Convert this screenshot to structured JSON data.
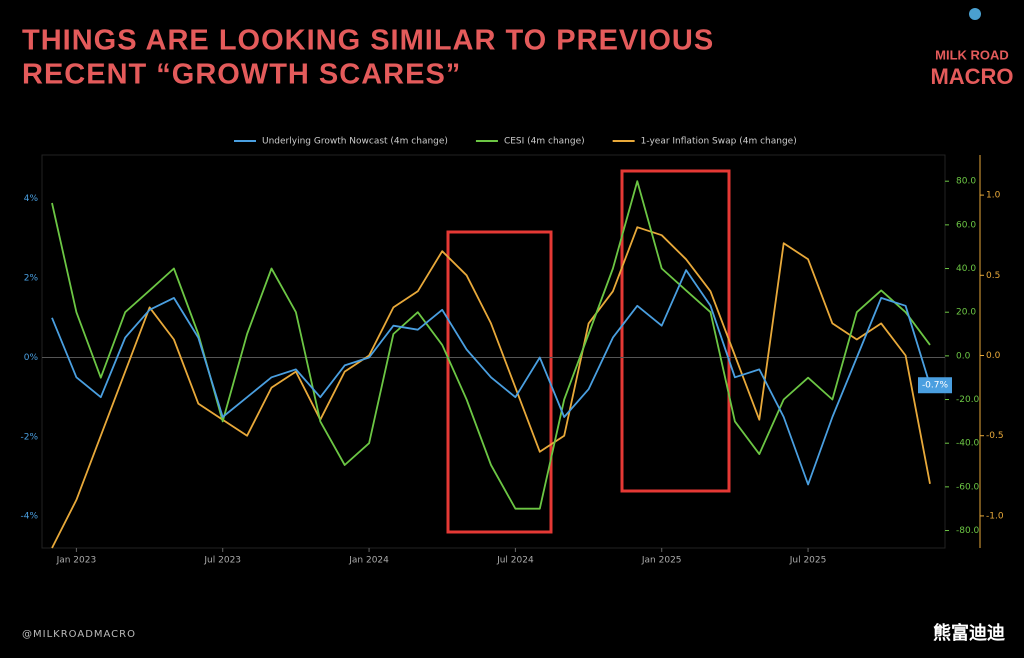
{
  "chart_data": {
    "type": "line",
    "title": [
      "THINGS ARE LOOKING SIMILAR TO PREVIOUS",
      "RECENT “GROWTH SCARES”"
    ],
    "brand": [
      "MILK ROAD",
      "MACRO"
    ],
    "footer": "@MILKROADMACRO",
    "watermark": "熊富迪迪",
    "x": [
      "2022-12",
      "2023-01",
      "2023-02",
      "2023-03",
      "2023-04",
      "2023-05",
      "2023-06",
      "2023-07",
      "2023-08",
      "2023-09",
      "2023-10",
      "2023-11",
      "2023-12",
      "2024-01",
      "2024-02",
      "2024-03",
      "2024-04",
      "2024-05",
      "2024-06",
      "2024-07",
      "2024-08",
      "2024-09",
      "2024-10",
      "2024-11",
      "2024-12",
      "2025-01",
      "2025-02",
      "2025-03",
      "2025-04",
      "2025-05",
      "2025-06",
      "2025-07",
      "2025-08",
      "2025-09",
      "2025-10",
      "2025-11",
      "2025-12"
    ],
    "xlim": [
      "2022-12",
      "2025-12"
    ],
    "xticks": [
      {
        "value": "2023-01",
        "label": "Jan 2023"
      },
      {
        "value": "2023-07",
        "label": "Jul 2023"
      },
      {
        "value": "2024-01",
        "label": "Jan 2024"
      },
      {
        "value": "2024-07",
        "label": "Jul 2024"
      },
      {
        "value": "2025-01",
        "label": "Jan 2025"
      },
      {
        "value": "2025-07",
        "label": "Jul 2025"
      }
    ],
    "ylim": [
      -4.8,
      5.1
    ],
    "yticks": [
      {
        "value": -4,
        "label": "-4%"
      },
      {
        "value": -2,
        "label": "-2%"
      },
      {
        "value": 0,
        "label": "0%"
      },
      {
        "value": 2,
        "label": "2%"
      },
      {
        "value": 4,
        "label": "4%"
      }
    ],
    "y2lim": [
      -88,
      92
    ],
    "y2ticks": [
      {
        "value": -80,
        "label": "-80.0"
      },
      {
        "value": -60,
        "label": "-60.0"
      },
      {
        "value": -40,
        "label": "-40.0"
      },
      {
        "value": -20,
        "label": "-20.0"
      },
      {
        "value": 0,
        "label": "0.0"
      },
      {
        "value": 20,
        "label": "20.0"
      },
      {
        "value": 40,
        "label": "40.0"
      },
      {
        "value": 60,
        "label": "60.0"
      },
      {
        "value": 80,
        "label": "80.0"
      }
    ],
    "y3lim": [
      -1.2,
      1.25
    ],
    "y3ticks": [
      {
        "value": -1,
        "label": "-1.0"
      },
      -0.5,
      {
        "value": 0,
        "label": "0.0"
      },
      0.5,
      {
        "value": 1,
        "label": "1.0"
      }
    ],
    "series": [
      {
        "name": "Underlying Growth Nowcast (4m change)",
        "color": "#4a9fe0",
        "axis": "y",
        "values": [
          1.0,
          -0.5,
          -1.0,
          0.5,
          1.2,
          1.5,
          0.5,
          -1.5,
          -1.0,
          -0.5,
          -0.3,
          -1.0,
          -0.2,
          0.0,
          0.8,
          0.7,
          1.2,
          0.2,
          -0.5,
          -1.0,
          0.0,
          -1.5,
          -0.8,
          0.5,
          1.3,
          0.8,
          2.2,
          1.3,
          -0.5,
          -0.3,
          -1.5,
          -3.2,
          -1.5,
          0.0,
          1.5,
          1.3,
          -0.7
        ],
        "last_label": "-0.7%"
      },
      {
        "name": "CESI (4m change)",
        "color": "#6cc644",
        "axis": "y2",
        "values": [
          70,
          20,
          -10,
          20,
          30,
          40,
          10,
          -30,
          10,
          40,
          20,
          -30,
          -50,
          -40,
          10,
          20,
          5,
          -20,
          -50,
          -70,
          -70,
          -20,
          10,
          40,
          80,
          40,
          30,
          20,
          -30,
          -45,
          -20,
          -10,
          -20,
          20,
          30,
          20,
          5
        ]
      },
      {
        "name": "1-year Inflation Swap (4m change)",
        "color": "#e8a93a",
        "axis": "y3",
        "values": [
          -1.2,
          -0.9,
          -0.5,
          -0.1,
          0.3,
          0.1,
          -0.3,
          -0.4,
          -0.5,
          -0.2,
          -0.1,
          -0.4,
          -0.1,
          0.0,
          0.3,
          0.4,
          0.65,
          0.5,
          0.2,
          -0.2,
          -0.6,
          -0.5,
          0.2,
          0.4,
          0.8,
          0.75,
          0.6,
          0.4,
          0.0,
          -0.4,
          0.7,
          0.6,
          0.2,
          0.1,
          0.2,
          0.0,
          -0.8
        ]
      }
    ]
  }
}
